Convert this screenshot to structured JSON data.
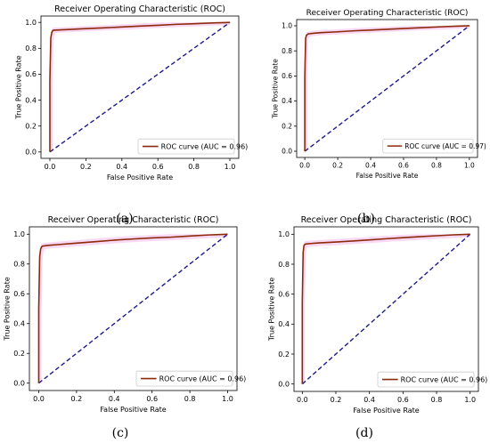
{
  "figure": {
    "captions": [
      "(a)",
      "(b)",
      "(c)",
      "(d)"
    ]
  },
  "colors": {
    "roc_line": "#8b2a0a",
    "roc_band": "#f4b8ea",
    "diagonal": "#1a1a8c",
    "axis": "#000000"
  },
  "chart_data": [
    {
      "type": "line",
      "title": "Receiver Operating Characteristic (ROC)",
      "xlabel": "False Positive Rate",
      "ylabel": "True Positive Rate",
      "xlim": [
        0.0,
        1.0
      ],
      "ylim": [
        0.0,
        1.0
      ],
      "xticks": [
        "0.0",
        "0.2",
        "0.4",
        "0.6",
        "0.8",
        "1.0"
      ],
      "yticks": [
        "0.0",
        "0.2",
        "0.4",
        "0.6",
        "0.8",
        "1.0"
      ],
      "legend_position": "bottom-right",
      "grid": false,
      "series": [
        {
          "name": "ROC curve (AUC = 0.96)",
          "style": "solid",
          "x": [
            0.0,
            0.0,
            0.005,
            0.01,
            0.015,
            0.02,
            0.05,
            0.1,
            0.2,
            0.3,
            0.4,
            0.5,
            0.6,
            0.7,
            0.8,
            0.9,
            1.0
          ],
          "y": [
            0.0,
            0.55,
            0.88,
            0.92,
            0.935,
            0.94,
            0.942,
            0.945,
            0.952,
            0.958,
            0.965,
            0.972,
            0.978,
            0.985,
            0.99,
            0.996,
            1.0
          ]
        },
        {
          "name": "",
          "style": "dashed",
          "x": [
            0.0,
            1.0
          ],
          "y": [
            0.0,
            1.0
          ]
        }
      ]
    },
    {
      "type": "line",
      "title": "Receiver Operating Characteristic (ROC)",
      "xlabel": "False Positive Rate",
      "ylabel": "True Positive Rate",
      "xlim": [
        0.0,
        1.0
      ],
      "ylim": [
        0.0,
        1.0
      ],
      "xticks": [
        "0.0",
        "0.2",
        "0.4",
        "0.6",
        "0.8",
        "1.0"
      ],
      "yticks": [
        "0.0",
        "0.2",
        "0.4",
        "0.6",
        "0.8",
        "1.0"
      ],
      "legend_position": "bottom-right",
      "grid": false,
      "series": [
        {
          "name": "ROC curve (AUC = 0.97)",
          "style": "solid",
          "x": [
            0.0,
            0.0,
            0.005,
            0.01,
            0.015,
            0.02,
            0.05,
            0.1,
            0.2,
            0.3,
            0.4,
            0.5,
            0.6,
            0.7,
            0.8,
            0.9,
            1.0
          ],
          "y": [
            0.0,
            0.6,
            0.9,
            0.925,
            0.93,
            0.935,
            0.94,
            0.945,
            0.952,
            0.96,
            0.966,
            0.972,
            0.978,
            0.984,
            0.99,
            0.996,
            1.0
          ]
        },
        {
          "name": "",
          "style": "dashed",
          "x": [
            0.0,
            1.0
          ],
          "y": [
            0.0,
            1.0
          ]
        }
      ]
    },
    {
      "type": "line",
      "title": "Receiver Operating Characteristic (ROC)",
      "xlabel": "False Positive Rate",
      "ylabel": "True Positive Rate",
      "xlim": [
        0.0,
        1.0
      ],
      "ylim": [
        0.0,
        1.0
      ],
      "xticks": [
        "0.0",
        "0.2",
        "0.4",
        "0.6",
        "0.8",
        "1.0"
      ],
      "yticks": [
        "0.0",
        "0.2",
        "0.4",
        "0.6",
        "0.8",
        "1.0"
      ],
      "legend_position": "bottom-right",
      "grid": false,
      "series": [
        {
          "name": "ROC curve (AUC = 0.96)",
          "style": "solid",
          "x": [
            0.0,
            0.0,
            0.005,
            0.01,
            0.015,
            0.02,
            0.05,
            0.1,
            0.2,
            0.3,
            0.4,
            0.5,
            0.6,
            0.7,
            0.8,
            0.9,
            1.0
          ],
          "y": [
            0.0,
            0.5,
            0.85,
            0.9,
            0.915,
            0.92,
            0.925,
            0.93,
            0.94,
            0.95,
            0.96,
            0.968,
            0.975,
            0.98,
            0.988,
            0.995,
            1.0
          ]
        },
        {
          "name": "",
          "style": "dashed",
          "x": [
            0.0,
            1.0
          ],
          "y": [
            0.0,
            1.0
          ]
        }
      ]
    },
    {
      "type": "line",
      "title": "Receiver Operating Characteristic (ROC)",
      "xlabel": "False Positive Rate",
      "ylabel": "True Positive Rate",
      "xlim": [
        0.0,
        1.0
      ],
      "ylim": [
        0.0,
        1.0
      ],
      "xticks": [
        "0.0",
        "0.2",
        "0.4",
        "0.6",
        "0.8",
        "1.0"
      ],
      "yticks": [
        "0.0",
        "0.2",
        "0.4",
        "0.6",
        "0.8",
        "1.0"
      ],
      "legend_position": "bottom-right",
      "grid": false,
      "series": [
        {
          "name": "ROC curve (AUC = 0.96)",
          "style": "solid",
          "x": [
            0.0,
            0.0,
            0.005,
            0.01,
            0.015,
            0.02,
            0.05,
            0.1,
            0.2,
            0.3,
            0.4,
            0.5,
            0.6,
            0.7,
            0.8,
            0.9,
            1.0
          ],
          "y": [
            0.0,
            0.55,
            0.88,
            0.925,
            0.932,
            0.935,
            0.938,
            0.942,
            0.948,
            0.955,
            0.962,
            0.97,
            0.977,
            0.984,
            0.99,
            0.996,
            1.0
          ]
        },
        {
          "name": "",
          "style": "dashed",
          "x": [
            0.0,
            1.0
          ],
          "y": [
            0.0,
            1.0
          ]
        }
      ]
    }
  ]
}
